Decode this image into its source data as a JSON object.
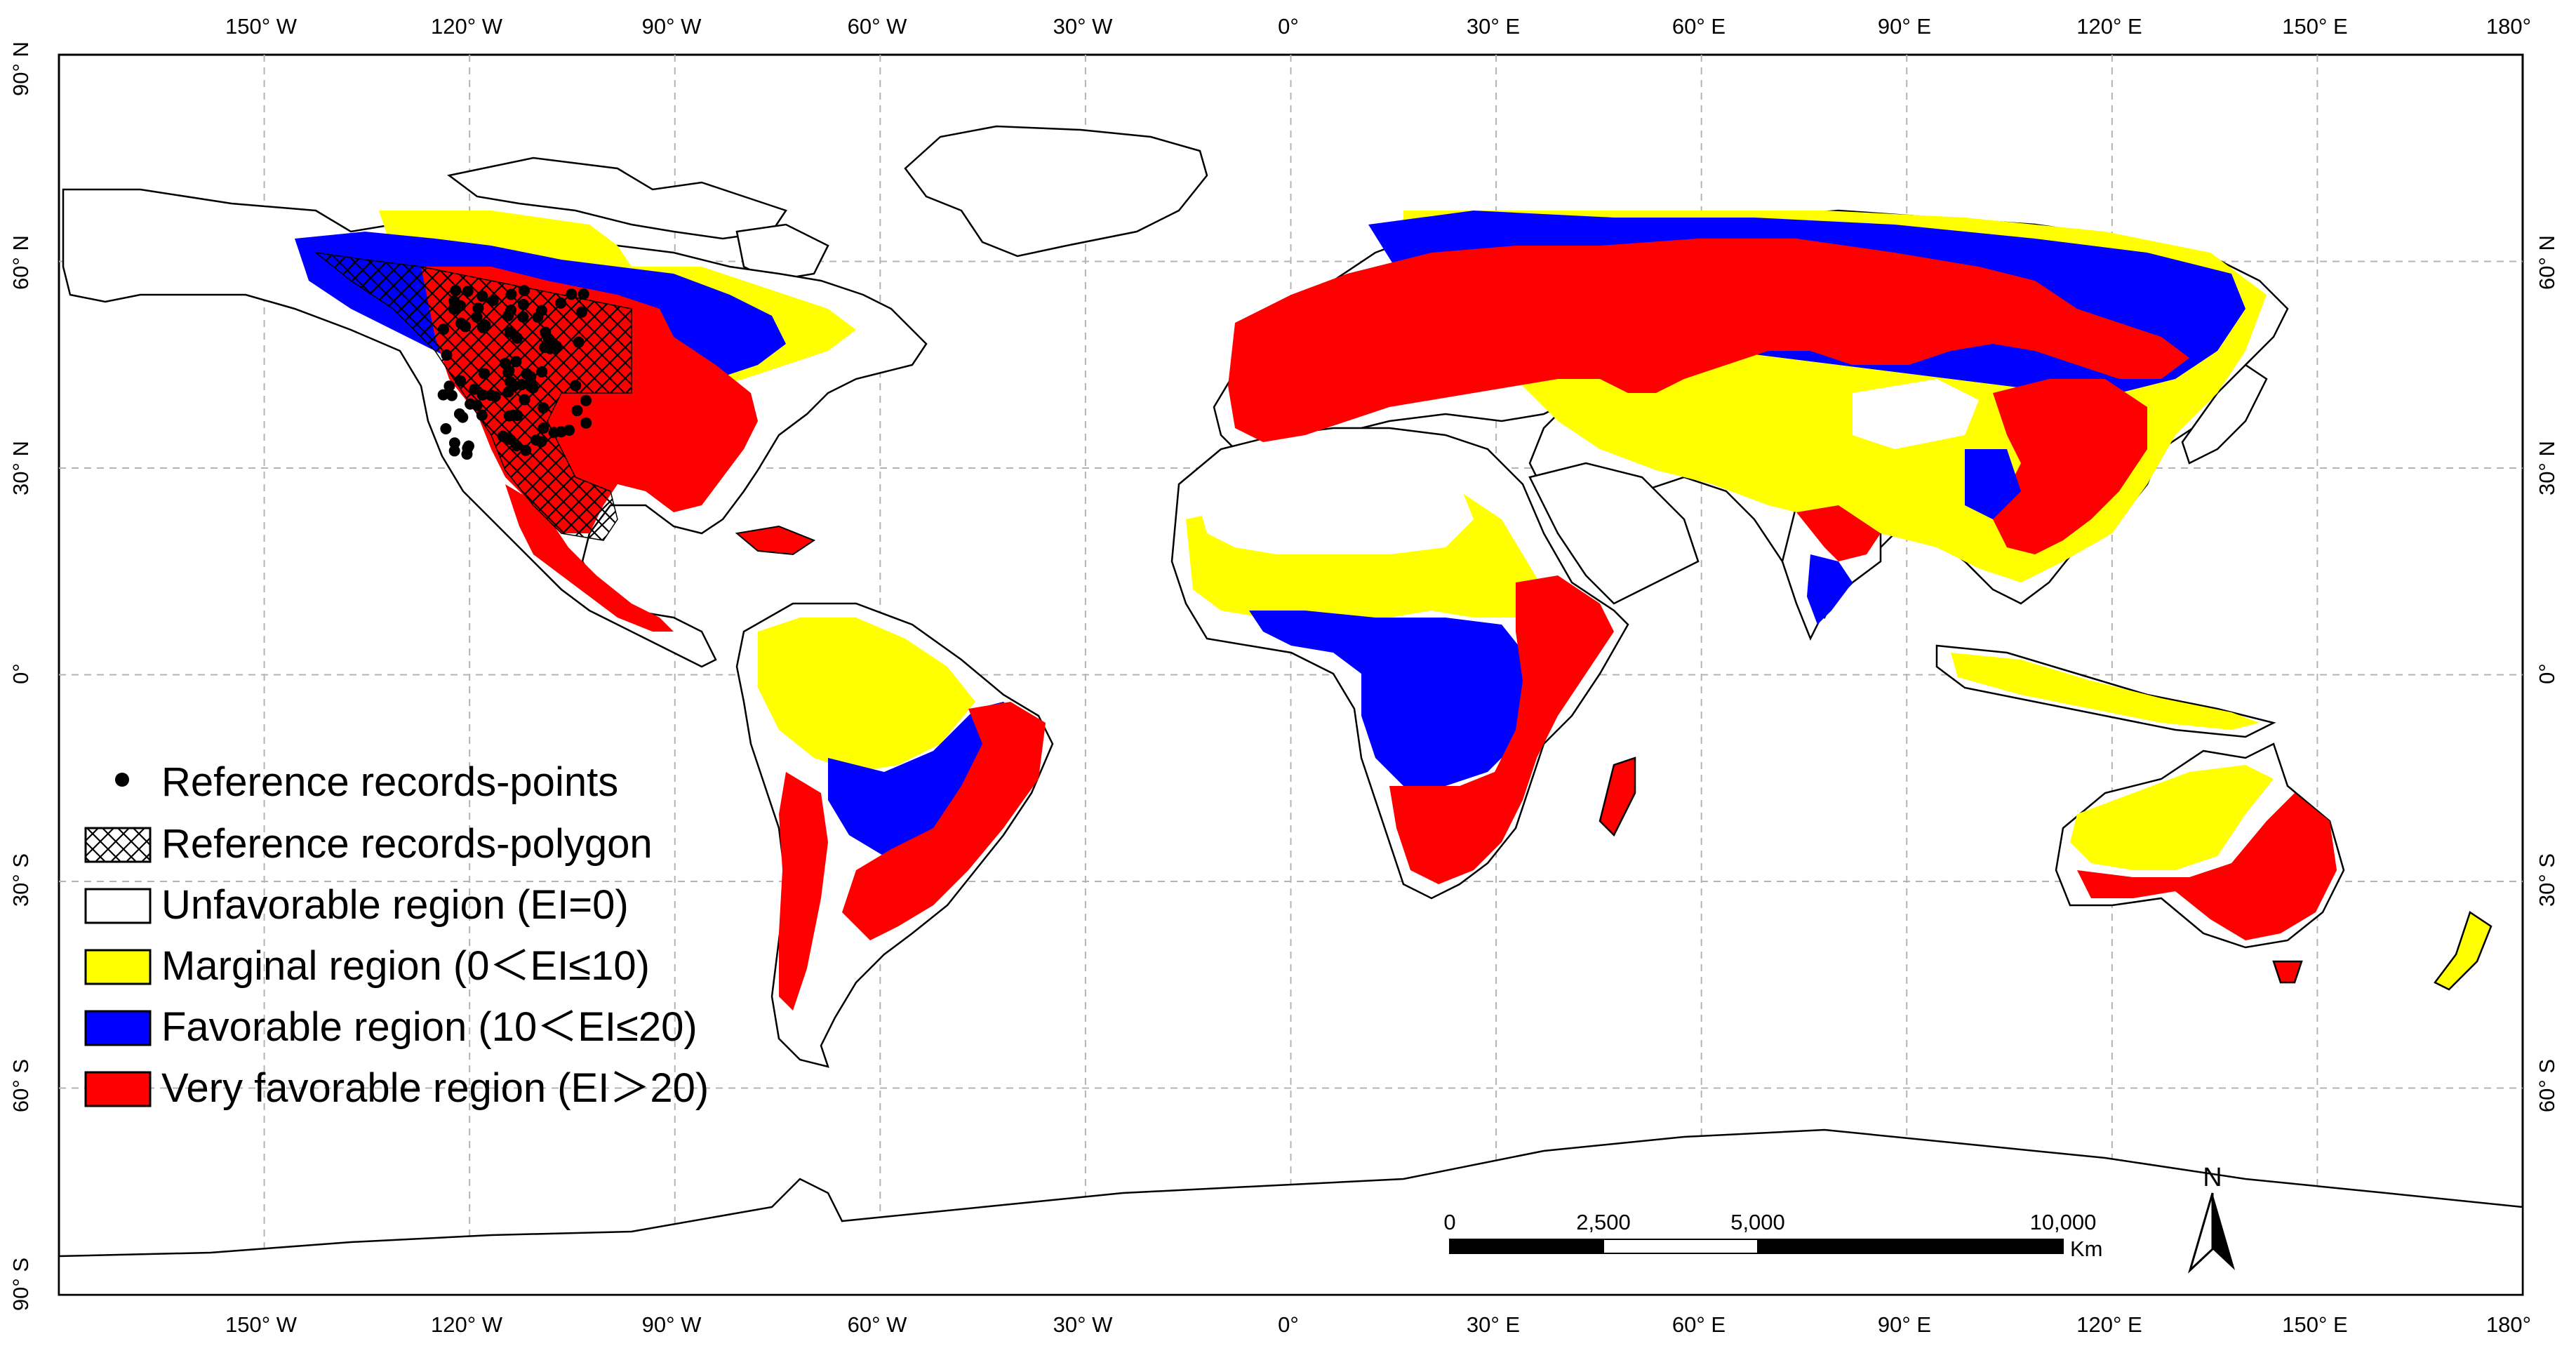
{
  "map": {
    "projection": "geographic",
    "graticule_interval_deg": 30,
    "grid": true,
    "lon_range": [
      -180,
      180
    ],
    "lat_range": [
      -90,
      90
    ]
  },
  "axes": {
    "top_labels": [
      "150° W",
      "120° W",
      "90° W",
      "60° W",
      "30° W",
      "0°",
      "30° E",
      "60° E",
      "90° E",
      "120° E",
      "150° E",
      "180°"
    ],
    "bottom_labels": [
      "150° W",
      "120° W",
      "90° W",
      "60° W",
      "30° W",
      "0°",
      "30° E",
      "60° E",
      "90° E",
      "120° E",
      "150° E",
      "180°"
    ],
    "left_labels": [
      "90° N",
      "60° N",
      "30° N",
      "0°",
      "30° S",
      "60° S",
      "90° S"
    ],
    "right_labels": [
      "60° N",
      "30° N",
      "0°",
      "30° S",
      "60° S"
    ]
  },
  "legend": {
    "position": "lower-left",
    "items": [
      {
        "label": "Reference records-points",
        "symbol": "point",
        "color": "#000000"
      },
      {
        "label": "Reference records-polygon",
        "symbol": "crosshatch",
        "color": "#000000"
      },
      {
        "label": "Unfavorable region (EI=0)",
        "symbol": "swatch",
        "color": "#ffffff"
      },
      {
        "label": "Marginal region (0＜EI≤10)",
        "symbol": "swatch",
        "color": "#ffff00"
      },
      {
        "label": "Favorable region (10＜EI≤20)",
        "symbol": "swatch",
        "color": "#0000ff"
      },
      {
        "label": "Very favorable region (EI＞20)",
        "symbol": "swatch",
        "color": "#ff0000"
      }
    ]
  },
  "scale_bar": {
    "labels": [
      "0",
      "2,500",
      "5,000",
      "10,000"
    ],
    "unit": "Km"
  },
  "north_arrow": {
    "label": "N"
  },
  "colors": {
    "unfavorable": "#ffffff",
    "marginal": "#ffff00",
    "favorable": "#0000ff",
    "very_favorable": "#ff0000",
    "outline": "#000000",
    "grid": "#b4b4b4"
  }
}
